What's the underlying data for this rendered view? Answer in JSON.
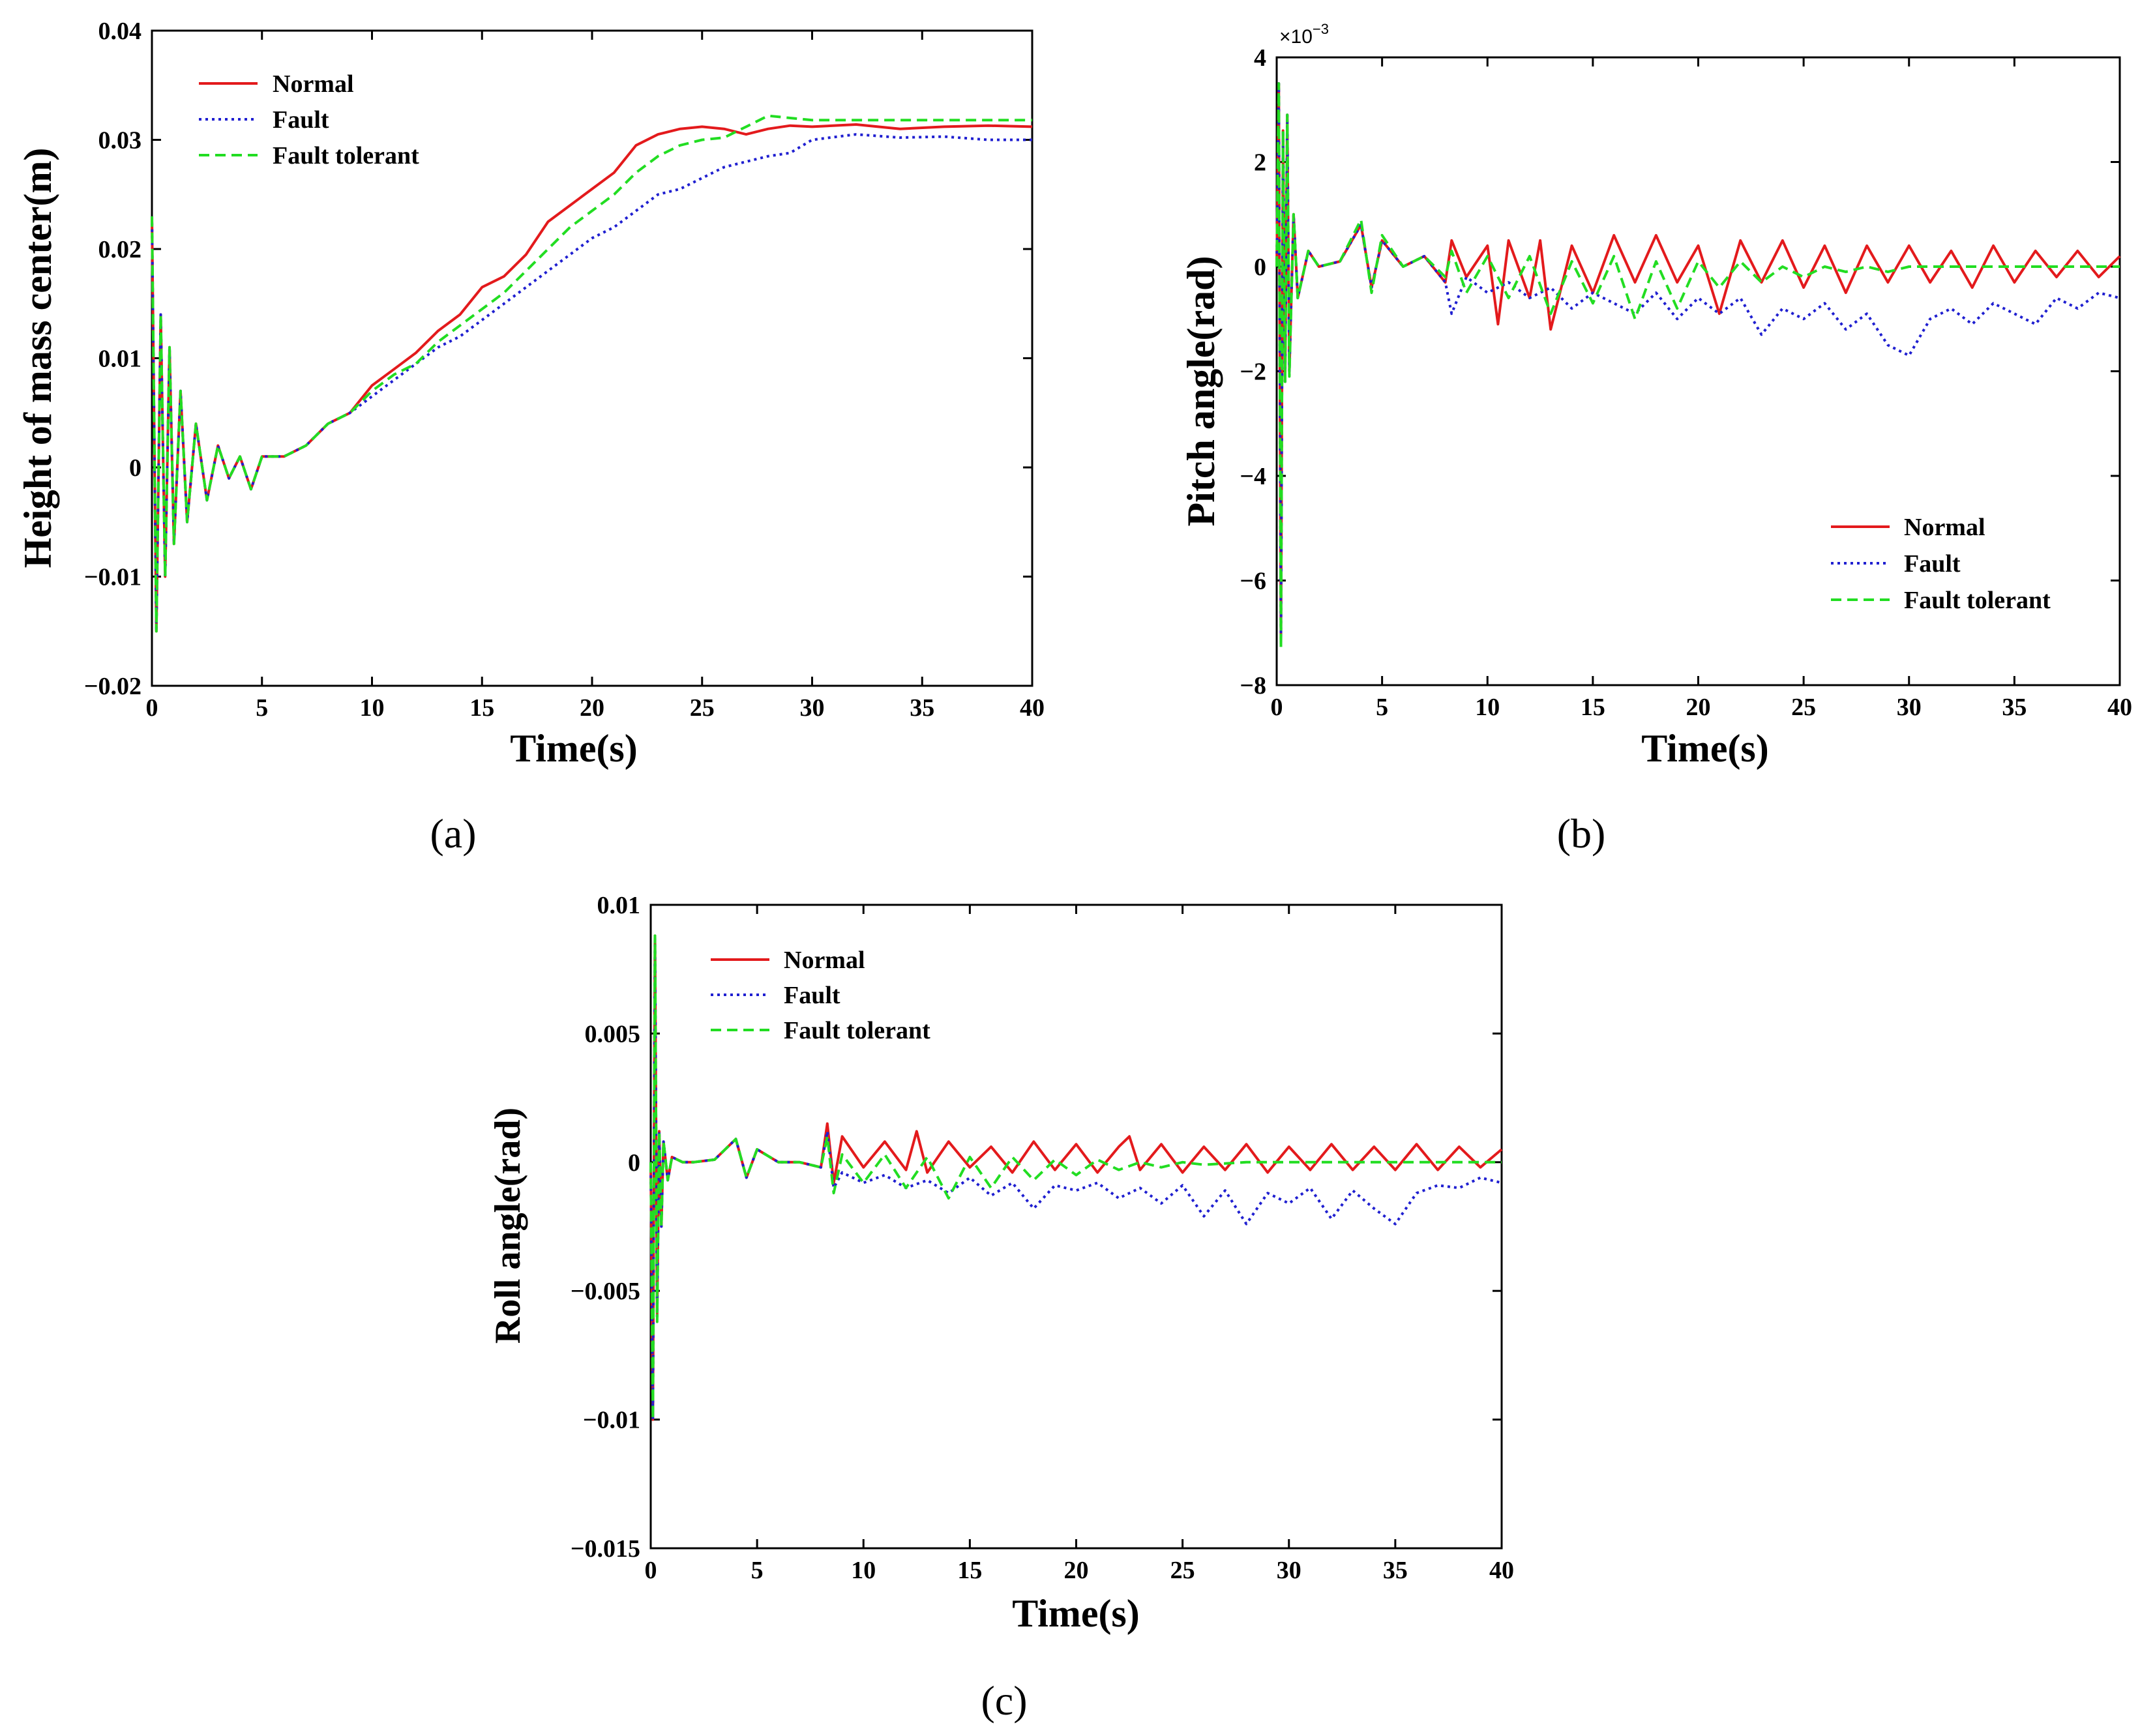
{
  "figure": {
    "panels": [
      "(a)",
      "(b)",
      "(c)"
    ]
  },
  "colors": {
    "normal": "#e31a1c",
    "fault": "#1f1fd0",
    "fault_tolerant": "#22dd22"
  },
  "chart_data": [
    {
      "id": "a",
      "type": "line",
      "xlabel": "Time(s)",
      "ylabel": "Height of mass center(m)",
      "xlim": [
        0,
        40
      ],
      "ylim": [
        -0.02,
        0.04
      ],
      "xticks": [
        "0",
        "5",
        "10",
        "15",
        "20",
        "25",
        "30",
        "35",
        "40"
      ],
      "yticks": [
        "−0.02",
        "−0.01",
        "0",
        "0.01",
        "0.02",
        "0.03",
        "0.04"
      ],
      "legend_position": "top-left",
      "series": [
        {
          "name": "Normal",
          "style": "solid",
          "x": [
            0,
            0.2,
            0.4,
            0.6,
            0.8,
            1.0,
            1.3,
            1.6,
            2.0,
            2.5,
            3.0,
            3.5,
            4.0,
            4.5,
            5,
            6,
            7,
            8,
            9,
            10,
            11,
            12,
            13,
            14,
            15,
            16,
            17,
            18,
            19,
            20,
            21,
            22,
            23,
            24,
            25,
            26,
            27,
            28,
            29,
            30,
            32,
            34,
            36,
            38,
            40
          ],
          "y": [
            0.023,
            -0.015,
            0.014,
            -0.01,
            0.011,
            -0.007,
            0.007,
            -0.005,
            0.004,
            -0.003,
            0.002,
            -0.001,
            0.001,
            -0.002,
            0.001,
            0.001,
            0.002,
            0.004,
            0.005,
            0.0075,
            0.009,
            0.0105,
            0.0125,
            0.014,
            0.0165,
            0.0175,
            0.0195,
            0.0225,
            0.024,
            0.0255,
            0.027,
            0.0295,
            0.0305,
            0.031,
            0.0312,
            0.031,
            0.0305,
            0.031,
            0.0313,
            0.0312,
            0.0314,
            0.031,
            0.0312,
            0.0313,
            0.0312
          ]
        },
        {
          "name": "Fault",
          "style": "dotted",
          "x": [
            0,
            0.2,
            0.4,
            0.6,
            0.8,
            1.0,
            1.3,
            1.6,
            2.0,
            2.5,
            3.0,
            3.5,
            4.0,
            4.5,
            5,
            6,
            7,
            8,
            9,
            10,
            11,
            12,
            13,
            14,
            15,
            16,
            17,
            18,
            19,
            20,
            21,
            22,
            23,
            24,
            25,
            26,
            27,
            28,
            29,
            30,
            32,
            34,
            36,
            38,
            40
          ],
          "y": [
            0.023,
            -0.015,
            0.014,
            -0.01,
            0.011,
            -0.007,
            0.007,
            -0.005,
            0.004,
            -0.003,
            0.002,
            -0.001,
            0.001,
            -0.002,
            0.001,
            0.001,
            0.002,
            0.004,
            0.005,
            0.0065,
            0.008,
            0.0095,
            0.011,
            0.012,
            0.0135,
            0.015,
            0.0165,
            0.018,
            0.0195,
            0.021,
            0.022,
            0.0235,
            0.025,
            0.0255,
            0.0265,
            0.0275,
            0.028,
            0.0285,
            0.0288,
            0.03,
            0.0305,
            0.0302,
            0.0303,
            0.03,
            0.03
          ]
        },
        {
          "name": "Fault tolerant",
          "style": "dashed",
          "x": [
            0,
            0.2,
            0.4,
            0.6,
            0.8,
            1.0,
            1.3,
            1.6,
            2.0,
            2.5,
            3.0,
            3.5,
            4.0,
            4.5,
            5,
            6,
            7,
            8,
            9,
            10,
            11,
            12,
            13,
            14,
            15,
            16,
            17,
            18,
            19,
            20,
            21,
            22,
            23,
            24,
            25,
            26,
            27,
            28,
            29,
            30,
            32,
            34,
            36,
            38,
            40
          ],
          "y": [
            0.023,
            -0.015,
            0.014,
            -0.01,
            0.011,
            -0.007,
            0.007,
            -0.005,
            0.004,
            -0.003,
            0.002,
            -0.001,
            0.001,
            -0.002,
            0.001,
            0.001,
            0.002,
            0.004,
            0.005,
            0.007,
            0.0085,
            0.0095,
            0.0115,
            0.013,
            0.0145,
            0.016,
            0.018,
            0.02,
            0.022,
            0.0235,
            0.025,
            0.027,
            0.0285,
            0.0295,
            0.03,
            0.0302,
            0.0312,
            0.0322,
            0.032,
            0.0318,
            0.0318,
            0.0318,
            0.0318,
            0.0318,
            0.0318
          ]
        }
      ]
    },
    {
      "id": "b",
      "type": "line",
      "xlabel": "Time(s)",
      "ylabel": "Pitch angle(rad)",
      "y_scale_label": "×10",
      "y_scale_exponent": "−3",
      "xlim": [
        0,
        40
      ],
      "ylim": [
        -8,
        4
      ],
      "xticks": [
        "0",
        "5",
        "10",
        "15",
        "20",
        "25",
        "30",
        "35",
        "40"
      ],
      "yticks": [
        "−8",
        "−6",
        "−4",
        "−2",
        "0",
        "2",
        "4"
      ],
      "legend_position": "bottom-right",
      "series": [
        {
          "name": "Normal",
          "style": "solid",
          "x": [
            0,
            0.1,
            0.2,
            0.3,
            0.4,
            0.5,
            0.6,
            0.8,
            1.0,
            1.5,
            2,
            3,
            4,
            4.5,
            5,
            6,
            7,
            8,
            8.3,
            9,
            10,
            10.5,
            11,
            12,
            12.5,
            13,
            14,
            15,
            16,
            17,
            18,
            19,
            20,
            21,
            22,
            23,
            24,
            25,
            26,
            27,
            28,
            29,
            30,
            31,
            32,
            33,
            34,
            35,
            36,
            37,
            38,
            39,
            40
          ],
          "y": [
            0,
            3.5,
            -7.2,
            2.6,
            -2.2,
            2.9,
            -2.0,
            1.0,
            -0.6,
            0.3,
            0,
            0.1,
            0.8,
            -0.4,
            0.5,
            0,
            0.2,
            -0.3,
            0.5,
            -0.2,
            0.4,
            -1.1,
            0.5,
            -0.6,
            0.5,
            -1.2,
            0.4,
            -0.5,
            0.6,
            -0.3,
            0.6,
            -0.3,
            0.4,
            -0.9,
            0.5,
            -0.3,
            0.5,
            -0.4,
            0.4,
            -0.5,
            0.4,
            -0.3,
            0.4,
            -0.3,
            0.3,
            -0.4,
            0.4,
            -0.3,
            0.3,
            -0.2,
            0.3,
            -0.2,
            0.2
          ]
        },
        {
          "name": "Fault",
          "style": "dotted",
          "x": [
            0,
            0.1,
            0.2,
            0.3,
            0.4,
            0.5,
            0.6,
            0.8,
            1.0,
            1.5,
            2,
            3,
            4,
            4.5,
            5,
            6,
            7,
            8,
            8.3,
            9,
            10,
            11,
            12,
            13,
            14,
            15,
            16,
            17,
            18,
            19,
            20,
            21,
            22,
            23,
            24,
            25,
            26,
            27,
            28,
            29,
            30,
            31,
            32,
            33,
            34,
            35,
            36,
            37,
            38,
            39,
            40
          ],
          "y": [
            0,
            3.5,
            -7.2,
            2.6,
            -2.2,
            2.9,
            -2.0,
            1.0,
            -0.6,
            0.3,
            0,
            0.1,
            0.8,
            -0.4,
            0.5,
            0,
            0.2,
            -0.3,
            -0.9,
            -0.2,
            -0.5,
            -0.3,
            -0.6,
            -0.4,
            -0.8,
            -0.5,
            -0.7,
            -0.9,
            -0.5,
            -1.0,
            -0.6,
            -0.9,
            -0.6,
            -1.3,
            -0.8,
            -1.0,
            -0.7,
            -1.2,
            -0.9,
            -1.5,
            -1.7,
            -1.0,
            -0.8,
            -1.1,
            -0.7,
            -0.9,
            -1.1,
            -0.6,
            -0.8,
            -0.5,
            -0.6
          ]
        },
        {
          "name": "Fault tolerant",
          "style": "dashed",
          "x": [
            0,
            0.1,
            0.2,
            0.3,
            0.4,
            0.5,
            0.6,
            0.8,
            1.0,
            1.5,
            2,
            3,
            4,
            4.5,
            5,
            6,
            7,
            8,
            8.3,
            9,
            10,
            11,
            12,
            13,
            14,
            15,
            16,
            17,
            18,
            19,
            20,
            21,
            22,
            23,
            24,
            25,
            26,
            27,
            28,
            29,
            30,
            32,
            34,
            36,
            38,
            40
          ],
          "y": [
            0,
            3.5,
            -7.3,
            2.6,
            -2.2,
            2.9,
            -2.1,
            1.0,
            -0.6,
            0.3,
            0,
            0.1,
            0.9,
            -0.5,
            0.6,
            0,
            0.2,
            -0.2,
            0.3,
            -0.5,
            0.2,
            -0.6,
            0.2,
            -0.9,
            0.1,
            -0.7,
            0.2,
            -1.0,
            0.1,
            -0.8,
            0.1,
            -0.4,
            0.1,
            -0.3,
            0,
            -0.2,
            0,
            -0.1,
            0,
            -0.1,
            0,
            0,
            0,
            0,
            0,
            0
          ]
        }
      ]
    },
    {
      "id": "c",
      "type": "line",
      "xlabel": "Time(s)",
      "ylabel": "Roll angle(rad)",
      "xlim": [
        0,
        40
      ],
      "ylim": [
        -0.015,
        0.01
      ],
      "xticks": [
        "0",
        "5",
        "10",
        "15",
        "20",
        "25",
        "30",
        "35",
        "40"
      ],
      "yticks": [
        "−0.015",
        "−0.01",
        "−0.005",
        "0",
        "0.005",
        "0.01"
      ],
      "legend_position": "top-left",
      "series": [
        {
          "name": "Normal",
          "style": "solid",
          "x": [
            0,
            0.1,
            0.2,
            0.3,
            0.4,
            0.5,
            0.6,
            0.8,
            1.0,
            1.5,
            2,
            3,
            4,
            4.5,
            5,
            6,
            7,
            8,
            8.3,
            8.6,
            9,
            10,
            11,
            12,
            12.5,
            13,
            14,
            15,
            16,
            17,
            18,
            19,
            20,
            21,
            22,
            22.5,
            23,
            24,
            25,
            26,
            27,
            28,
            29,
            30,
            31,
            32,
            33,
            34,
            35,
            36,
            37,
            38,
            39,
            40
          ],
          "y": [
            0,
            -0.01,
            0.0088,
            -0.006,
            0.0012,
            -0.0025,
            0.0008,
            -0.0007,
            0.0002,
            0,
            0,
            0.0001,
            0.0009,
            -0.0006,
            0.0005,
            0,
            0,
            -0.0002,
            0.0015,
            -0.0008,
            0.001,
            -0.0002,
            0.0008,
            -0.0003,
            0.0012,
            -0.0004,
            0.0008,
            -0.0002,
            0.0006,
            -0.0004,
            0.0008,
            -0.0003,
            0.0007,
            -0.0004,
            0.0006,
            0.001,
            -0.0003,
            0.0007,
            -0.0004,
            0.0006,
            -0.0003,
            0.0007,
            -0.0004,
            0.0006,
            -0.0003,
            0.0007,
            -0.0003,
            0.0006,
            -0.0003,
            0.0007,
            -0.0003,
            0.0006,
            -0.0002,
            0.0005
          ]
        },
        {
          "name": "Fault",
          "style": "dotted",
          "x": [
            0,
            0.1,
            0.2,
            0.3,
            0.4,
            0.5,
            0.6,
            0.8,
            1.0,
            1.5,
            2,
            3,
            4,
            4.5,
            5,
            6,
            7,
            8,
            8.3,
            8.6,
            9,
            10,
            11,
            12,
            13,
            14,
            15,
            16,
            17,
            18,
            19,
            20,
            21,
            22,
            23,
            24,
            25,
            26,
            27,
            28,
            29,
            30,
            31,
            32,
            33,
            34,
            35,
            36,
            37,
            38,
            39,
            40
          ],
          "y": [
            0,
            -0.01,
            0.0088,
            -0.006,
            0.0012,
            -0.0025,
            0.0008,
            -0.0007,
            0.0002,
            0,
            0,
            0.0001,
            0.0009,
            -0.0006,
            0.0005,
            0,
            0,
            -0.0002,
            0.0012,
            -0.001,
            -0.0004,
            -0.0008,
            -0.0005,
            -0.001,
            -0.0007,
            -0.0012,
            -0.0006,
            -0.0013,
            -0.0008,
            -0.0018,
            -0.0009,
            -0.0011,
            -0.0008,
            -0.0014,
            -0.001,
            -0.0016,
            -0.0009,
            -0.0021,
            -0.0011,
            -0.0024,
            -0.0012,
            -0.0016,
            -0.001,
            -0.0022,
            -0.0011,
            -0.0018,
            -0.0024,
            -0.0012,
            -0.0009,
            -0.001,
            -0.0006,
            -0.0008
          ]
        },
        {
          "name": "Fault tolerant",
          "style": "dashed",
          "x": [
            0,
            0.1,
            0.2,
            0.3,
            0.4,
            0.5,
            0.6,
            0.8,
            1.0,
            1.5,
            2,
            3,
            4,
            4.5,
            5,
            6,
            7,
            8,
            8.3,
            8.6,
            9,
            10,
            11,
            12,
            13,
            14,
            15,
            16,
            17,
            18,
            19,
            20,
            21,
            22,
            23,
            24,
            25,
            26,
            28,
            30,
            32,
            34,
            36,
            38,
            40
          ],
          "y": [
            0,
            -0.01,
            0.0088,
            -0.0062,
            0.0012,
            -0.0025,
            0.0008,
            -0.0007,
            0.0002,
            0,
            0,
            0.0001,
            0.0009,
            -0.0006,
            0.0005,
            0,
            0,
            -0.0002,
            0.001,
            -0.0012,
            0.0003,
            -0.0008,
            0.0003,
            -0.001,
            0.0002,
            -0.0014,
            0.0002,
            -0.001,
            0.0002,
            -0.0007,
            0.0001,
            -0.0005,
            0.0001,
            -0.0003,
            0,
            -0.0002,
            0,
            -0.0001,
            0,
            0,
            0,
            0,
            0,
            0,
            0
          ]
        }
      ]
    }
  ]
}
